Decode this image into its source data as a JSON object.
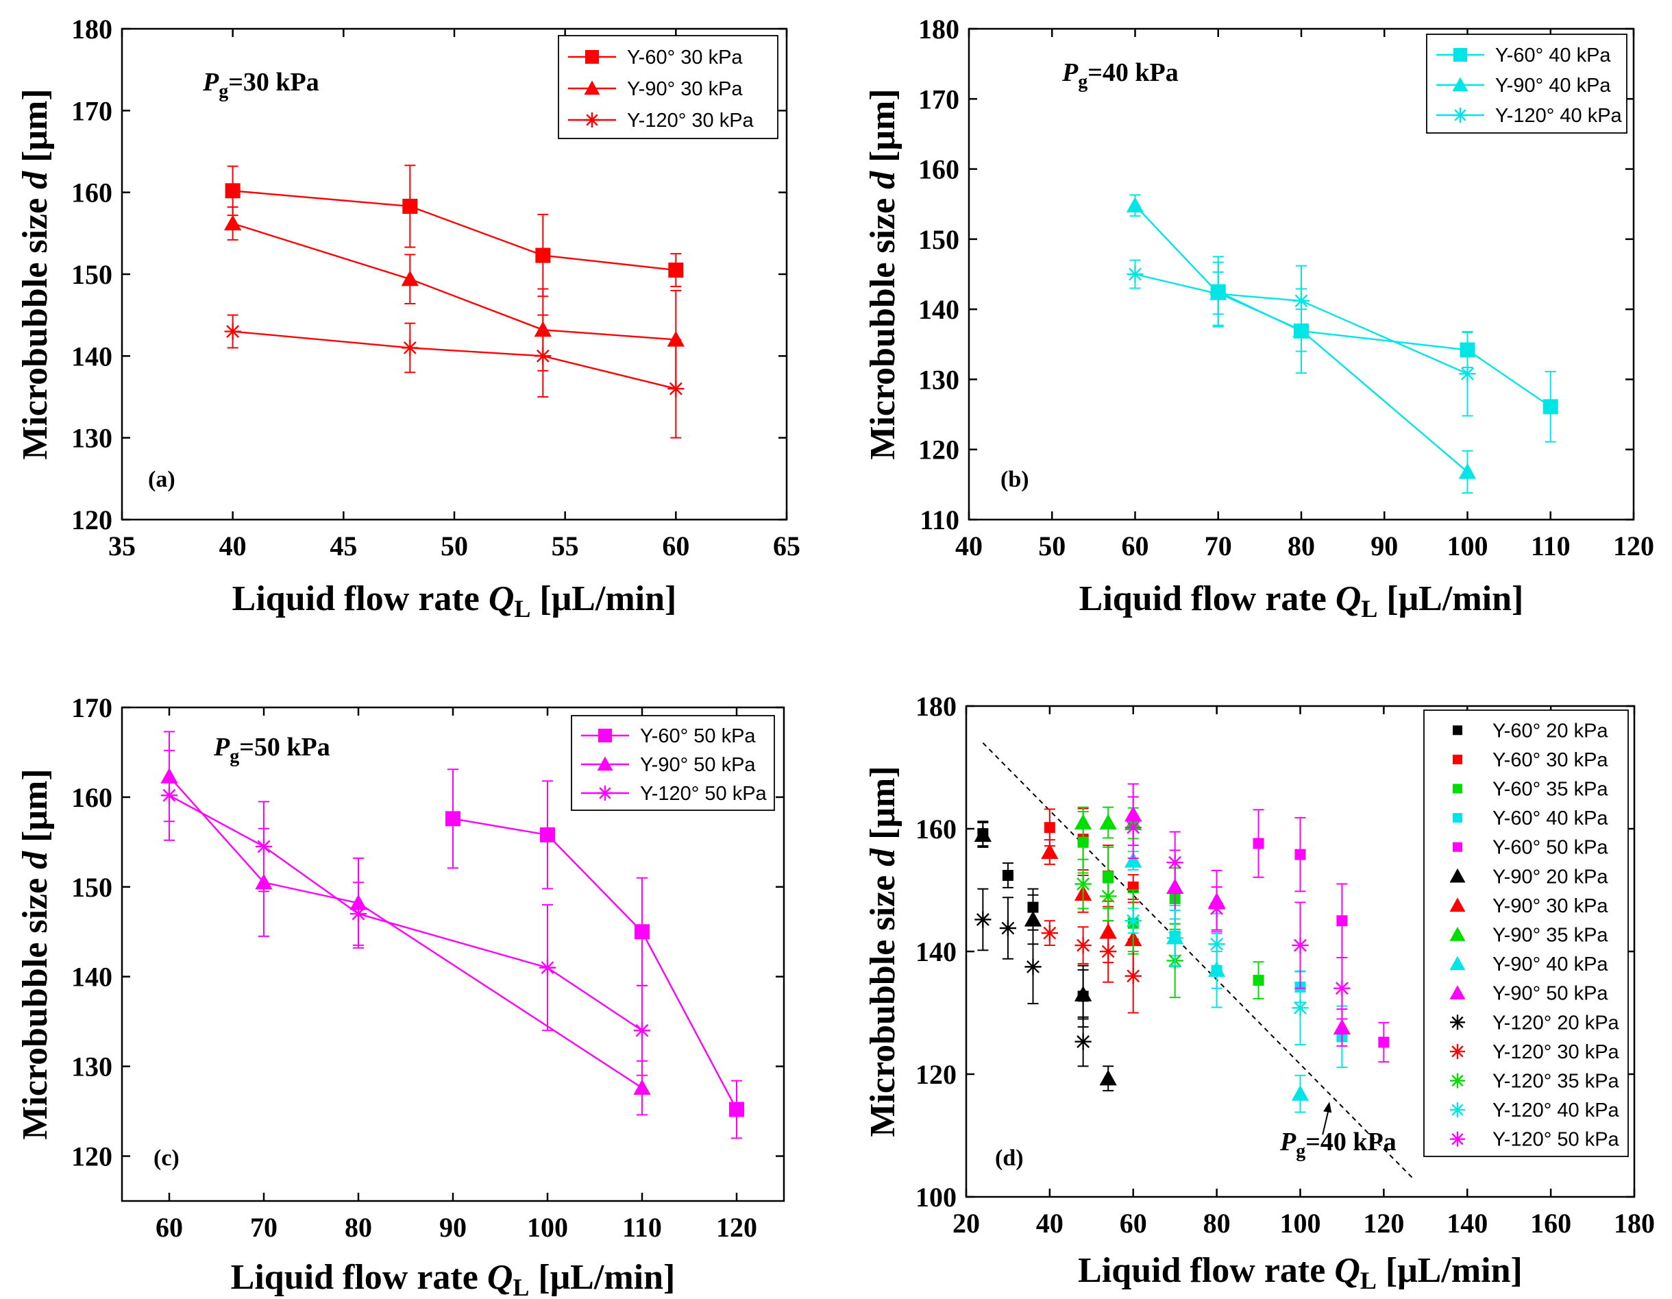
{
  "chart_data": [
    {
      "type": "line",
      "panel_label": "(a)",
      "annotation": {
        "main": "P",
        "sub": "g",
        "rest": "=30 kPa"
      },
      "xlabel": {
        "main": "Liquid flow rate ",
        "q": "Q",
        "sub": "L",
        "unit": " [μL/min]"
      },
      "ylabel": {
        "main": "Microbubble size ",
        "d": "d",
        "unit": " [μm]"
      },
      "xlim": [
        35,
        65
      ],
      "ylim": [
        120,
        180
      ],
      "xticks": [
        35,
        40,
        45,
        50,
        55,
        60,
        65
      ],
      "yticks": [
        120,
        130,
        140,
        150,
        160,
        170,
        180
      ],
      "legend_position": "top-right",
      "series": [
        {
          "name": "Y-60° 30 kPa",
          "marker": "square",
          "color": "#ff0000",
          "x": [
            40,
            48,
            54,
            60
          ],
          "y": [
            160.2,
            158.3,
            152.3,
            150.5
          ],
          "err": [
            3,
            5,
            5,
            2
          ]
        },
        {
          "name": "Y-90° 30 kPa",
          "marker": "triangle",
          "color": "#ff0000",
          "x": [
            40,
            48,
            54,
            60
          ],
          "y": [
            156.2,
            149.4,
            143.2,
            142.0
          ],
          "err": [
            2,
            3,
            5,
            6
          ]
        },
        {
          "name": "Y-120° 30 kPa",
          "marker": "star",
          "color": "#ff0000",
          "x": [
            40,
            48,
            54,
            60
          ],
          "y": [
            143,
            141,
            140,
            136
          ],
          "err": [
            2,
            3,
            5,
            6
          ]
        }
      ]
    },
    {
      "type": "line",
      "panel_label": "(b)",
      "annotation": {
        "main": "P",
        "sub": "g",
        "rest": "=40 kPa"
      },
      "xlabel": {
        "main": "Liquid flow rate ",
        "q": "Q",
        "sub": "L",
        "unit": " [μL/min]"
      },
      "ylabel": {
        "main": "Microbubble size ",
        "d": "d",
        "unit": " [μm]"
      },
      "xlim": [
        40,
        120
      ],
      "ylim": [
        110,
        180
      ],
      "xticks": [
        40,
        50,
        60,
        70,
        80,
        90,
        100,
        110,
        120
      ],
      "yticks": [
        110,
        120,
        130,
        140,
        150,
        160,
        170,
        180
      ],
      "legend_position": "top-right",
      "series": [
        {
          "name": "Y-60° 40 kPa",
          "marker": "square",
          "color": "#00e5e5",
          "x": [
            70,
            80,
            100,
            110
          ],
          "y": [
            142.5,
            136.9,
            134.2,
            126.1
          ],
          "err": [
            5,
            6,
            2.5,
            5
          ]
        },
        {
          "name": "Y-90° 40 kPa",
          "marker": "triangle",
          "color": "#00e5e5",
          "x": [
            60,
            70,
            80,
            100
          ],
          "y": [
            154.8,
            142.3,
            137.0,
            116.8
          ],
          "err": [
            1.5,
            3,
            3,
            3
          ]
        },
        {
          "name": "Y-120° 40 kPa",
          "marker": "star",
          "color": "#00e5e5",
          "x": [
            60,
            70,
            80,
            100
          ],
          "y": [
            145.0,
            142.2,
            141.2,
            130.8
          ],
          "err": [
            2,
            4.5,
            5,
            6
          ]
        }
      ]
    },
    {
      "type": "line",
      "panel_label": "(c)",
      "annotation": {
        "main": "P",
        "sub": "g",
        "rest": "=50 kPa"
      },
      "xlabel": {
        "main": "Liquid flow rate ",
        "q": "Q",
        "sub": "L",
        "unit": " [μL/min]"
      },
      "ylabel": {
        "main": "Microbubble size ",
        "d": "d",
        "unit": " [μm]"
      },
      "xlim": [
        55,
        125
      ],
      "ylim": [
        115,
        170
      ],
      "xticks": [
        60,
        70,
        80,
        90,
        100,
        110,
        120
      ],
      "yticks": [
        120,
        130,
        140,
        150,
        160,
        170
      ],
      "legend_position": "top-right",
      "series": [
        {
          "name": "Y-60° 50 kPa",
          "marker": "square",
          "color": "#ff00ff",
          "x": [
            90,
            100,
            110,
            120
          ],
          "y": [
            157.6,
            155.8,
            145.0,
            125.2
          ],
          "err": [
            5.5,
            6,
            6,
            3.2
          ]
        },
        {
          "name": "Y-90° 50 kPa",
          "marker": "triangle",
          "color": "#ff00ff",
          "x": [
            60,
            70,
            80,
            110
          ],
          "y": [
            162.3,
            150.5,
            148.2,
            127.6
          ],
          "err": [
            5,
            6,
            5,
            3
          ]
        },
        {
          "name": "Y-120° 50 kPa",
          "marker": "star",
          "color": "#ff00ff",
          "x": [
            60,
            70,
            80,
            100,
            110
          ],
          "y": [
            160.2,
            154.5,
            147.0,
            141.0,
            134.0
          ],
          "err": [
            5,
            5,
            3.5,
            7,
            5
          ]
        }
      ]
    },
    {
      "type": "scatter",
      "panel_label": "(d)",
      "annotation": {
        "main": "P",
        "sub": "g",
        "rest": "=40 kPa"
      },
      "xlabel": {
        "main": "Liquid flow rate ",
        "q": "Q",
        "sub": "L",
        "unit": " [μL/min]"
      },
      "ylabel": {
        "main": "Microbubble size ",
        "d": "d",
        "unit": " [μm]"
      },
      "xlim": [
        20,
        180
      ],
      "ylim": [
        100,
        180
      ],
      "xticks": [
        20,
        40,
        60,
        80,
        100,
        120,
        140,
        160,
        180
      ],
      "yticks": [
        100,
        120,
        140,
        160,
        180
      ],
      "legend_position": "top-right",
      "dashed_line": {
        "x": [
          24,
          127
        ],
        "y": [
          174,
          103
        ]
      },
      "series": [
        {
          "name": "Y-60° 20 kPa",
          "marker": "square",
          "color": "#000000",
          "x": [
            24,
            30,
            36,
            48
          ],
          "y": [
            159.2,
            152.4,
            147.2,
            132.7
          ],
          "err": [
            2,
            2,
            3,
            5
          ]
        },
        {
          "name": "Y-60° 30 kPa",
          "marker": "square",
          "color": "#ff0000",
          "x": [
            40,
            48,
            54,
            60
          ],
          "y": [
            160.2,
            158.3,
            152.3,
            150.5
          ],
          "err": [
            3,
            5,
            5,
            2
          ]
        },
        {
          "name": "Y-60° 35 kPa",
          "marker": "square",
          "color": "#00dd00",
          "x": [
            48,
            54,
            60,
            70,
            90
          ],
          "y": [
            157.8,
            152.0,
            144.6,
            148.6,
            135.3
          ],
          "err": [
            5,
            5,
            5,
            5,
            3
          ]
        },
        {
          "name": "Y-60° 40 kPa",
          "marker": "square",
          "color": "#00e5e5",
          "x": [
            70,
            80,
            100,
            110
          ],
          "y": [
            142.5,
            136.9,
            134.2,
            126.1
          ],
          "err": [
            5,
            6,
            2.5,
            5
          ]
        },
        {
          "name": "Y-60° 50 kPa",
          "marker": "square",
          "color": "#ff00ff",
          "x": [
            90,
            100,
            110,
            120
          ],
          "y": [
            157.6,
            155.8,
            145.0,
            125.2
          ],
          "err": [
            5.5,
            6,
            6,
            3.2
          ]
        },
        {
          "name": "Y-90° 20 kPa",
          "marker": "triangle",
          "color": "#000000",
          "x": [
            24,
            36,
            48,
            54
          ],
          "y": [
            159.0,
            145.2,
            133.0,
            119.3
          ],
          "err": [
            2,
            4,
            4,
            2
          ]
        },
        {
          "name": "Y-90° 30 kPa",
          "marker": "triangle",
          "color": "#ff0000",
          "x": [
            40,
            48,
            54,
            60
          ],
          "y": [
            156.2,
            149.4,
            143.2,
            142.0
          ],
          "err": [
            2,
            3,
            5,
            6
          ]
        },
        {
          "name": "Y-90° 35 kPa",
          "marker": "triangle",
          "color": "#00dd00",
          "x": [
            48,
            54,
            60
          ],
          "y": [
            161.0,
            161.0,
            160.9
          ],
          "err": [
            2.5,
            2.5,
            2.5
          ]
        },
        {
          "name": "Y-90° 40 kPa",
          "marker": "triangle",
          "color": "#00e5e5",
          "x": [
            60,
            70,
            80,
            100
          ],
          "y": [
            154.8,
            142.3,
            137.0,
            116.8
          ],
          "err": [
            1.5,
            3,
            3,
            3
          ]
        },
        {
          "name": "Y-90° 50 kPa",
          "marker": "triangle",
          "color": "#ff00ff",
          "x": [
            60,
            70,
            80,
            110
          ],
          "y": [
            162.3,
            150.5,
            148.2,
            127.6
          ],
          "err": [
            5,
            6,
            5,
            3
          ]
        },
        {
          "name": "Y-120° 20 kPa",
          "marker": "star",
          "color": "#000000",
          "x": [
            24,
            30,
            36,
            48
          ],
          "y": [
            145.2,
            143.8,
            137.5,
            125.3
          ],
          "err": [
            5,
            5,
            6,
            4
          ]
        },
        {
          "name": "Y-120° 30 kPa",
          "marker": "star",
          "color": "#ff0000",
          "x": [
            40,
            48,
            54,
            60
          ],
          "y": [
            143,
            141,
            140,
            136
          ],
          "err": [
            2,
            3,
            5,
            6
          ]
        },
        {
          "name": "Y-120° 35 kPa",
          "marker": "star",
          "color": "#00dd00",
          "x": [
            48,
            54,
            60,
            70
          ],
          "y": [
            151.0,
            149.0,
            145.0,
            138.5
          ],
          "err": [
            4,
            4,
            5,
            6
          ]
        },
        {
          "name": "Y-120° 40 kPa",
          "marker": "star",
          "color": "#00e5e5",
          "x": [
            60,
            70,
            80,
            100
          ],
          "y": [
            145.0,
            142.2,
            141.2,
            130.8
          ],
          "err": [
            2,
            4.5,
            5,
            6
          ]
        },
        {
          "name": "Y-120° 50 kPa",
          "marker": "star",
          "color": "#ff00ff",
          "x": [
            60,
            70,
            80,
            100,
            110
          ],
          "y": [
            160.2,
            154.5,
            147.0,
            141.0,
            134.0
          ],
          "err": [
            5,
            5,
            3.5,
            7,
            5
          ]
        }
      ]
    }
  ]
}
